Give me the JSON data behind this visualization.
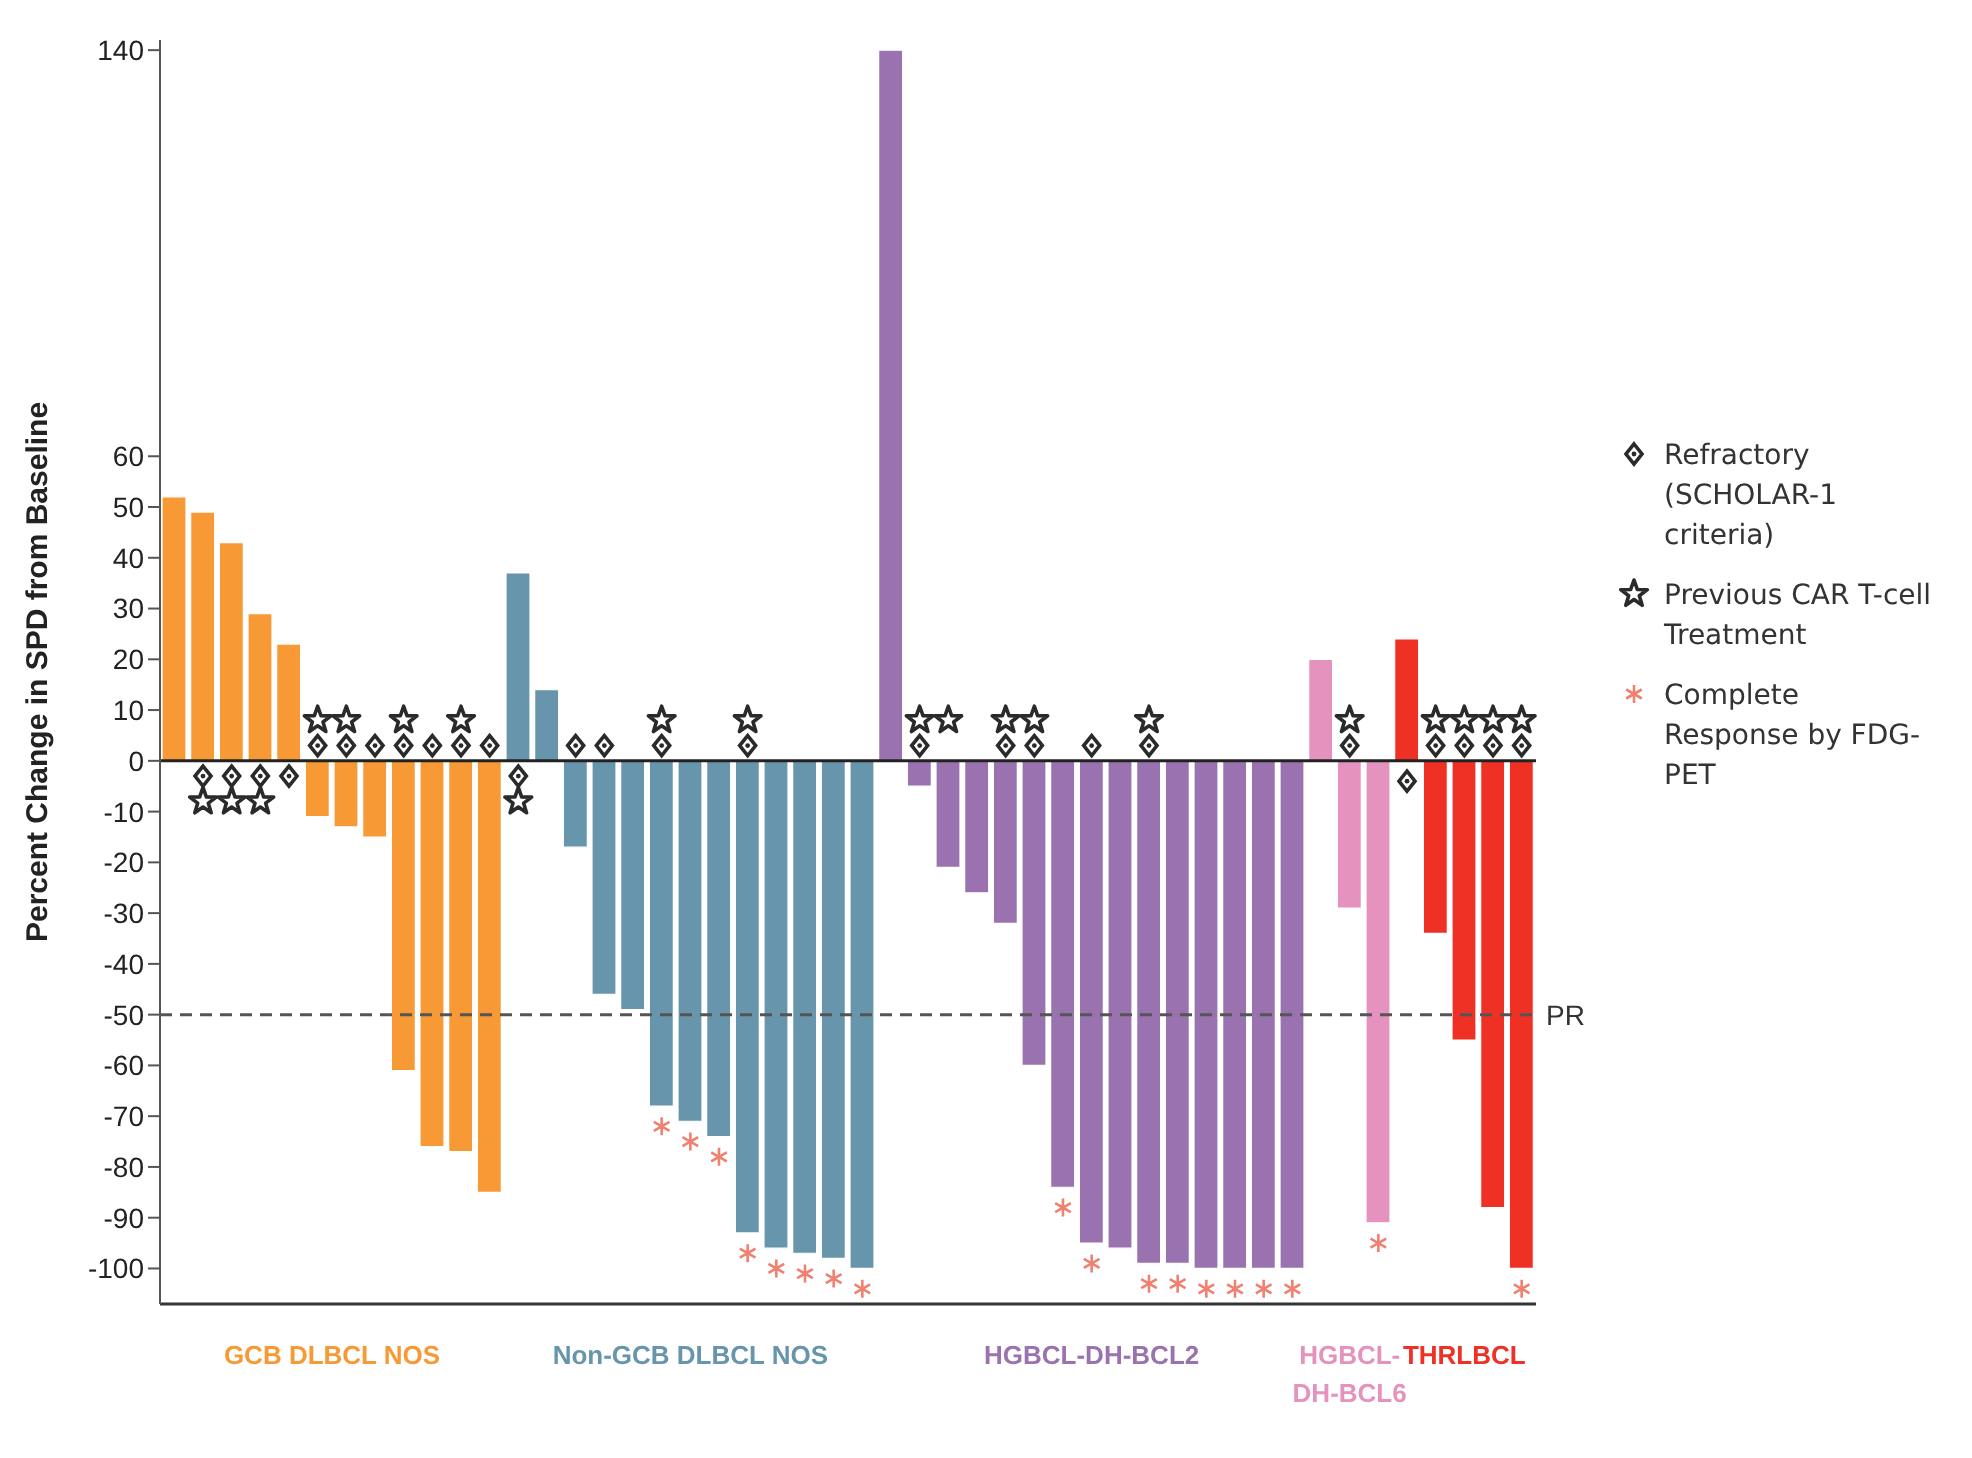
{
  "chart_data": {
    "type": "bar",
    "ylabel": "Percent Change in SPD from Baseline",
    "categories": [
      null,
      null,
      null,
      null,
      null,
      null,
      null,
      null,
      null,
      null,
      null,
      null,
      null,
      null,
      null,
      null,
      null,
      null,
      null,
      null,
      null,
      null,
      null,
      null,
      null,
      null,
      null,
      null,
      null,
      null,
      null,
      null,
      null,
      null,
      null,
      null,
      null,
      null,
      null,
      null,
      null,
      null,
      null,
      null,
      null,
      null,
      null,
      null
    ],
    "series": [
      {
        "name": "GCB DLBCL NOS",
        "color": "#f79a36",
        "values": [
          52,
          49,
          43,
          29,
          23,
          -11,
          -13,
          -15,
          -61,
          -76,
          -77,
          -85,
          null,
          null,
          null,
          null,
          null,
          null,
          null,
          null,
          null,
          null,
          null,
          null,
          null,
          null,
          null,
          null,
          null,
          null,
          null,
          null,
          null,
          null,
          null,
          null,
          null,
          null,
          null,
          null,
          null,
          null,
          null,
          null,
          null,
          null,
          null,
          null
        ]
      },
      {
        "name": "Non-GCB DLBCL NOS",
        "color": "#6795ab",
        "values": [
          null,
          null,
          null,
          null,
          null,
          null,
          null,
          null,
          null,
          null,
          null,
          null,
          37,
          14,
          -17,
          -46,
          -49,
          -68,
          -71,
          -74,
          -93,
          -96,
          -97,
          -98,
          -100,
          null,
          null,
          null,
          null,
          null,
          null,
          null,
          null,
          null,
          null,
          null,
          null,
          null,
          null,
          null,
          null,
          null,
          null,
          null,
          null,
          null,
          null,
          null
        ]
      },
      {
        "name": "HGBCL-DH-BCL2",
        "color": "#9a72b0",
        "values": [
          null,
          null,
          null,
          null,
          null,
          null,
          null,
          null,
          null,
          null,
          null,
          null,
          null,
          null,
          null,
          null,
          null,
          null,
          null,
          null,
          null,
          null,
          null,
          null,
          null,
          140,
          -5,
          -21,
          -26,
          -32,
          -60,
          -84,
          -95,
          -96,
          -99,
          -99,
          -100,
          -100,
          -100,
          -100,
          null,
          null,
          null,
          null,
          null,
          null,
          null,
          null
        ]
      },
      {
        "name": "HGBCL-DH-BCL6",
        "color": "#e592bf",
        "values": [
          null,
          null,
          null,
          null,
          null,
          null,
          null,
          null,
          null,
          null,
          null,
          null,
          null,
          null,
          null,
          null,
          null,
          null,
          null,
          null,
          null,
          null,
          null,
          null,
          null,
          null,
          null,
          null,
          null,
          null,
          null,
          null,
          null,
          null,
          null,
          null,
          null,
          null,
          null,
          null,
          20,
          -29,
          -91,
          null,
          null,
          null,
          null,
          null
        ]
      },
      {
        "name": "THRLBCL",
        "color": "#ee3124",
        "values": [
          null,
          null,
          null,
          null,
          null,
          null,
          null,
          null,
          null,
          null,
          null,
          null,
          null,
          null,
          null,
          null,
          null,
          null,
          null,
          null,
          null,
          null,
          null,
          null,
          null,
          null,
          null,
          null,
          null,
          null,
          null,
          null,
          null,
          null,
          null,
          null,
          null,
          null,
          null,
          null,
          null,
          null,
          null,
          24,
          -34,
          -55,
          -88,
          -100
        ]
      },
      {
        "type": "scatter",
        "marker": "diamond",
        "name": "Refractory (SCHOLAR-1 criteria)",
        "color": "#2a2a2a",
        "values": [
          null,
          -3,
          -3,
          -3,
          -3,
          3,
          3,
          3,
          3,
          3,
          3,
          3,
          -3,
          null,
          3,
          3,
          null,
          3,
          null,
          null,
          3,
          null,
          null,
          null,
          null,
          null,
          3,
          null,
          null,
          3,
          3,
          null,
          3,
          null,
          3,
          null,
          null,
          null,
          null,
          null,
          null,
          3,
          null,
          -4,
          3,
          3,
          3,
          3
        ]
      },
      {
        "type": "scatter",
        "marker": "star",
        "name": "Previous CAR T-cell Treatment",
        "color": "#2a2a2a",
        "values": [
          null,
          -8,
          -8,
          -8,
          null,
          8,
          8,
          null,
          8,
          null,
          8,
          null,
          -8,
          null,
          null,
          null,
          null,
          8,
          null,
          null,
          8,
          null,
          null,
          null,
          null,
          null,
          8,
          8,
          null,
          8,
          8,
          null,
          null,
          null,
          8,
          null,
          null,
          null,
          null,
          null,
          null,
          8,
          null,
          null,
          8,
          8,
          8,
          8
        ]
      },
      {
        "type": "scatter",
        "marker": "cross",
        "name": "Complete Response by FDG-PET",
        "color": "#f08070",
        "values": [
          null,
          null,
          null,
          null,
          null,
          null,
          null,
          null,
          null,
          null,
          null,
          null,
          null,
          null,
          null,
          null,
          null,
          -72,
          -75,
          -78,
          -97,
          -100,
          -101,
          -102,
          -104,
          null,
          null,
          null,
          null,
          null,
          null,
          -88,
          -99,
          null,
          -103,
          -103,
          -104,
          -104,
          -104,
          -104,
          null,
          null,
          -95,
          null,
          null,
          null,
          null,
          -104
        ]
      }
    ],
    "ylim": [
      -107,
      142
    ],
    "yticks": [
      -100,
      -90,
      -80,
      -70,
      -60,
      -50,
      -40,
      -30,
      -20,
      -10,
      0,
      10,
      20,
      30,
      40,
      50,
      60,
      140
    ],
    "ref_lines": [
      {
        "axis": "y",
        "value": 0,
        "color": "#222222",
        "line_style": "solid"
      },
      {
        "axis": "y",
        "value": -50,
        "label": "PR",
        "color": "#555555",
        "line_style": "dashed"
      }
    ],
    "grid": false,
    "legend": "right",
    "tick_labels": "y"
  }
}
